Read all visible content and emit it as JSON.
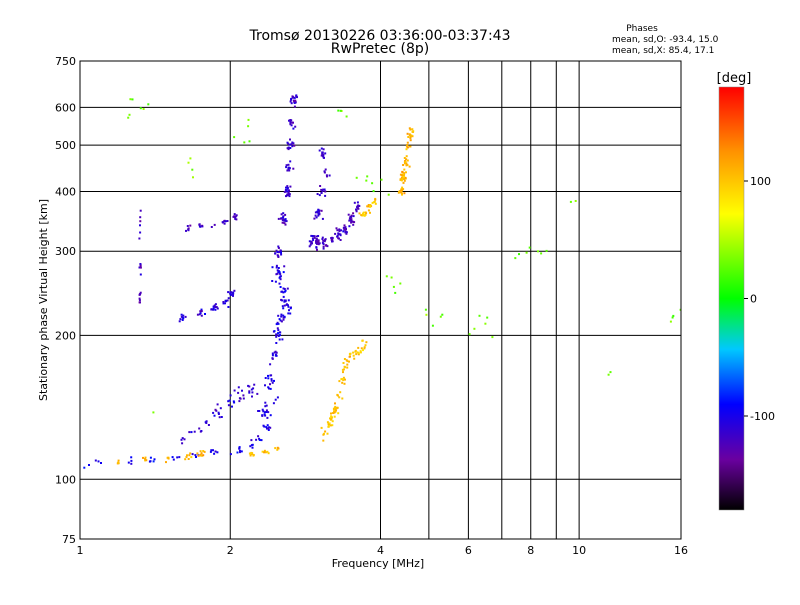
{
  "chart_data": {
    "type": "scatter",
    "title": "Tromsø 20130226 03:36:00-03:37:43",
    "subtitle": "RwPretec (8p)",
    "xlabel": "Frequency [MHz]",
    "ylabel": "Stationary phase Virtual Height [km]",
    "xscale": "log",
    "yscale": "log",
    "xlim": [
      1,
      16
    ],
    "ylim": [
      75,
      750
    ],
    "x_ticks": [
      1,
      2,
      4,
      6,
      8,
      10,
      16
    ],
    "x_tick_labels": [
      "1",
      "2",
      "4",
      "6",
      "8",
      "10",
      "16"
    ],
    "x_grid": [
      2,
      4,
      5,
      6,
      7,
      8,
      9,
      10
    ],
    "y_ticks": [
      75,
      100,
      200,
      300,
      400,
      500,
      600,
      750
    ],
    "y_tick_labels": [
      "75",
      "100",
      "200",
      "300",
      "400",
      "500",
      "600",
      "750"
    ],
    "grid": true,
    "stats": {
      "heading": "Phases",
      "o_line": "mean, sd,O: -93.4, 15.0",
      "x_line": "mean, sd,X:  85.4, 17.1"
    },
    "colorbar": {
      "label": "[deg]",
      "min": -180,
      "max": 180,
      "ticks": [
        100,
        0,
        -100
      ],
      "tick_labels": [
        "100",
        "0",
        "-100"
      ]
    },
    "clusters": [
      {
        "name": "low-E-trace",
        "phase": -100,
        "n": 60,
        "pts": [
          [
            1.02,
            108
          ],
          [
            1.1,
            108
          ],
          [
            1.25,
            109
          ],
          [
            1.4,
            110
          ],
          [
            1.55,
            111
          ],
          [
            1.7,
            112
          ],
          [
            1.85,
            113
          ],
          [
            1.98,
            114
          ],
          [
            2.1,
            116
          ],
          [
            2.2,
            118
          ],
          [
            2.3,
            122
          ],
          [
            2.38,
            128
          ],
          [
            2.42,
            136
          ],
          [
            2.45,
            146
          ]
        ],
        "sx": 0.015,
        "sy": 0.015
      },
      {
        "name": "low-E-trace-yellow",
        "phase": 110,
        "n": 30,
        "pts": [
          [
            1.2,
            109
          ],
          [
            1.35,
            110
          ],
          [
            1.5,
            111
          ],
          [
            1.65,
            112
          ],
          [
            1.75,
            113
          ]
        ],
        "sx": 0.012,
        "sy": 0.012
      },
      {
        "name": "F1-rise",
        "phase": -105,
        "n": 120,
        "pts": [
          [
            2.35,
            140
          ],
          [
            2.4,
            160
          ],
          [
            2.45,
            180
          ],
          [
            2.5,
            200
          ],
          [
            2.55,
            215
          ],
          [
            2.6,
            230
          ],
          [
            2.55,
            250
          ],
          [
            2.5,
            270
          ]
        ],
        "sx": 0.02,
        "sy": 0.03
      },
      {
        "name": "F1-upper-band",
        "phase": -110,
        "n": 50,
        "pts": [
          [
            1.6,
            218
          ],
          [
            1.75,
            222
          ],
          [
            1.85,
            228
          ],
          [
            1.95,
            235
          ],
          [
            2.02,
            245
          ]
        ],
        "sx": 0.012,
        "sy": 0.015
      },
      {
        "name": "mid-band-blue",
        "phase": -110,
        "n": 50,
        "pts": [
          [
            1.6,
            120
          ],
          [
            1.7,
            125
          ],
          [
            1.8,
            132
          ],
          [
            1.9,
            138
          ],
          [
            2.0,
            145
          ],
          [
            2.1,
            150
          ],
          [
            2.2,
            155
          ]
        ],
        "sx": 0.02,
        "sy": 0.03
      },
      {
        "name": "F2-vertical",
        "phase": -115,
        "n": 110,
        "pts": [
          [
            2.5,
            300
          ],
          [
            2.55,
            350
          ],
          [
            2.6,
            400
          ],
          [
            2.62,
            450
          ],
          [
            2.64,
            500
          ],
          [
            2.66,
            560
          ],
          [
            2.68,
            620
          ]
        ],
        "sx": 0.012,
        "sy": 0.02
      },
      {
        "name": "F2-curve",
        "phase": -120,
        "n": 100,
        "pts": [
          [
            2.9,
            310
          ],
          [
            3.0,
            310
          ],
          [
            3.1,
            312
          ],
          [
            3.2,
            318
          ],
          [
            3.3,
            325
          ],
          [
            3.4,
            335
          ],
          [
            3.5,
            350
          ],
          [
            3.6,
            370
          ]
        ],
        "sx": 0.01,
        "sy": 0.02
      },
      {
        "name": "F2-column",
        "phase": -115,
        "n": 60,
        "pts": [
          [
            2.95,
            320
          ],
          [
            3.0,
            360
          ],
          [
            3.05,
            400
          ],
          [
            3.1,
            440
          ],
          [
            3.05,
            480
          ]
        ],
        "sx": 0.015,
        "sy": 0.02
      },
      {
        "name": "F2-low-band",
        "phase": -120,
        "n": 30,
        "pts": [
          [
            1.65,
            335
          ],
          [
            1.75,
            338
          ],
          [
            1.85,
            340
          ],
          [
            1.95,
            345
          ],
          [
            2.05,
            355
          ]
        ],
        "sx": 0.008,
        "sy": 0.01
      },
      {
        "name": "X-yellow-column",
        "phase": 110,
        "n": 80,
        "pts": [
          [
            4.4,
            400
          ],
          [
            4.45,
            430
          ],
          [
            4.5,
            460
          ],
          [
            4.55,
            500
          ],
          [
            4.6,
            530
          ]
        ],
        "sx": 0.01,
        "sy": 0.02
      },
      {
        "name": "X-yellow-low",
        "phase": 100,
        "n": 60,
        "pts": [
          [
            3.1,
            125
          ],
          [
            3.15,
            130
          ],
          [
            3.2,
            135
          ],
          [
            3.25,
            140
          ],
          [
            3.3,
            150
          ],
          [
            3.35,
            160
          ],
          [
            3.4,
            170
          ]
        ],
        "sx": 0.012,
        "sy": 0.02
      },
      {
        "name": "X-yellow-mid",
        "phase": 100,
        "n": 30,
        "pts": [
          [
            3.4,
            175
          ],
          [
            3.5,
            180
          ],
          [
            3.6,
            185
          ],
          [
            3.7,
            190
          ]
        ],
        "sx": 0.015,
        "sy": 0.02
      },
      {
        "name": "X-yellow-F2",
        "phase": 100,
        "n": 25,
        "pts": [
          [
            3.7,
            360
          ],
          [
            3.8,
            370
          ],
          [
            3.9,
            380
          ]
        ],
        "sx": 0.012,
        "sy": 0.015
      },
      {
        "name": "X-yellow-E",
        "phase": 100,
        "n": 20,
        "pts": [
          [
            2.2,
            113
          ],
          [
            2.35,
            114
          ],
          [
            2.5,
            116
          ]
        ],
        "sx": 0.01,
        "sy": 0.008
      },
      {
        "name": "column-1.3MHz",
        "phase": -120,
        "n": 20,
        "pts": [
          [
            1.32,
            240
          ],
          [
            1.32,
            280
          ],
          [
            1.32,
            330
          ],
          [
            1.32,
            360
          ]
        ],
        "sx": 0.003,
        "sy": 0.03
      },
      {
        "name": "scatter-noise",
        "phase": 30,
        "n": 60,
        "pts": [
          [
            1.3,
            600
          ],
          [
            1.4,
            145
          ],
          [
            1.7,
            450
          ],
          [
            2.1,
            520
          ],
          [
            3.5,
            600
          ],
          [
            5.2,
            220
          ],
          [
            6.2,
            210
          ],
          [
            7.9,
            300
          ],
          [
            9.5,
            390
          ],
          [
            10.8,
            170
          ],
          [
            15.5,
            225
          ],
          [
            4.2,
            260
          ],
          [
            3.9,
            410
          ]
        ],
        "sx": 0.06,
        "sy": 0.05
      }
    ]
  }
}
